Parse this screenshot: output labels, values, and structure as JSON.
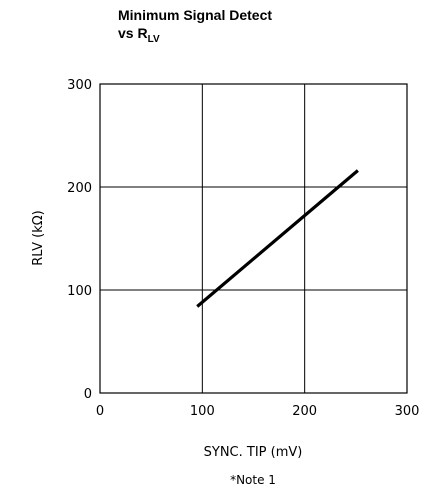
{
  "chart_data": {
    "type": "line",
    "title_line1": "Minimum Signal Detect",
    "title_line2_prefix": "vs R",
    "title_line2_subscript": "LV",
    "xlabel": "SYNC. TIP (mV)",
    "ylabel": "RLV (kΩ)",
    "note": "*Note 1",
    "xlim": [
      0,
      300
    ],
    "ylim": [
      0,
      300
    ],
    "xticks": [
      0,
      100,
      200,
      300
    ],
    "yticks": [
      0,
      100,
      200,
      300
    ],
    "xtick_labels": [
      "0",
      "100",
      "200",
      "300"
    ],
    "ytick_labels": [
      "0",
      "100",
      "200",
      "300"
    ],
    "grid": true,
    "series": [
      {
        "x": [
          95,
          252
        ],
        "y": [
          84,
          216
        ]
      }
    ]
  }
}
